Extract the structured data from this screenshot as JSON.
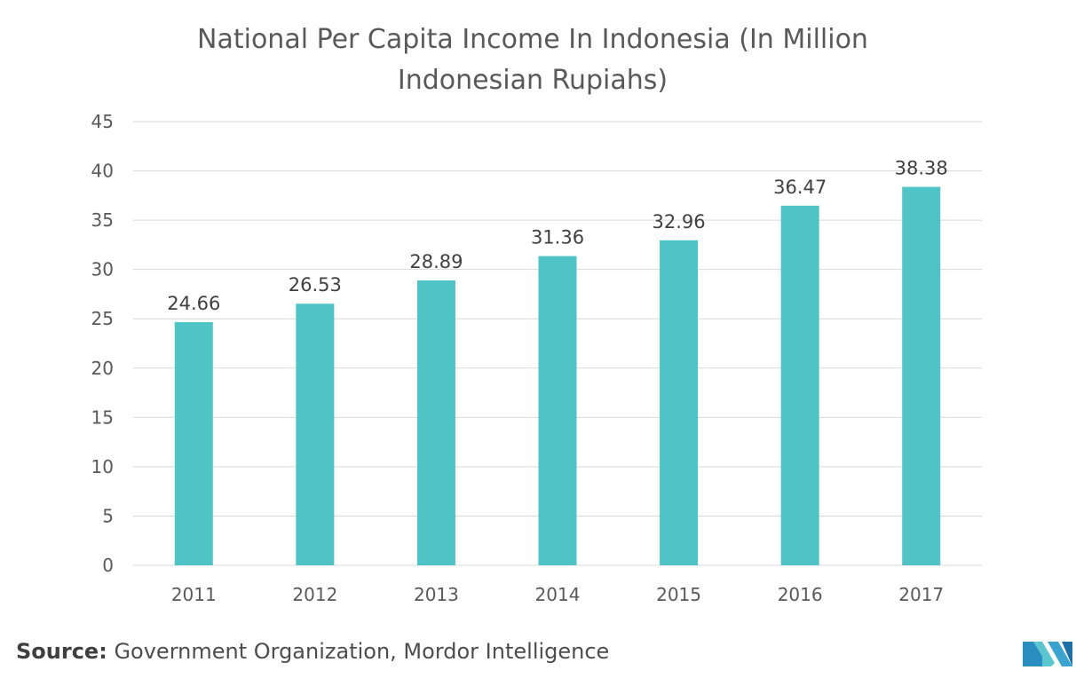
{
  "title_line1": "National Per Capita Income In Indonesia (In Million",
  "title_line2": "Indonesian Rupiahs)",
  "source_label": "Source:",
  "source_text": "Government Organization, Mordor Intelligence",
  "colors": {
    "bar": "#4fc3c6",
    "grid": "#d9d9d9",
    "text": "#595959"
  },
  "logo_icon": "mordor-intelligence-logo",
  "chart_data": {
    "type": "bar",
    "title": "National Per Capita Income In Indonesia (In Million Indonesian Rupiahs)",
    "categories": [
      "2011",
      "2012",
      "2013",
      "2014",
      "2015",
      "2016",
      "2017"
    ],
    "values": [
      24.66,
      26.53,
      28.89,
      31.36,
      32.96,
      36.47,
      38.38
    ],
    "data_labels": [
      "24.66",
      "26.53",
      "28.89",
      "31.36",
      "32.96",
      "36.47",
      "38.38"
    ],
    "ylim": [
      0,
      45
    ],
    "yticks": [
      0,
      5,
      10,
      15,
      20,
      25,
      30,
      35,
      40,
      45
    ],
    "xlabel": "",
    "ylabel": "",
    "grid": true,
    "legend": "none"
  }
}
